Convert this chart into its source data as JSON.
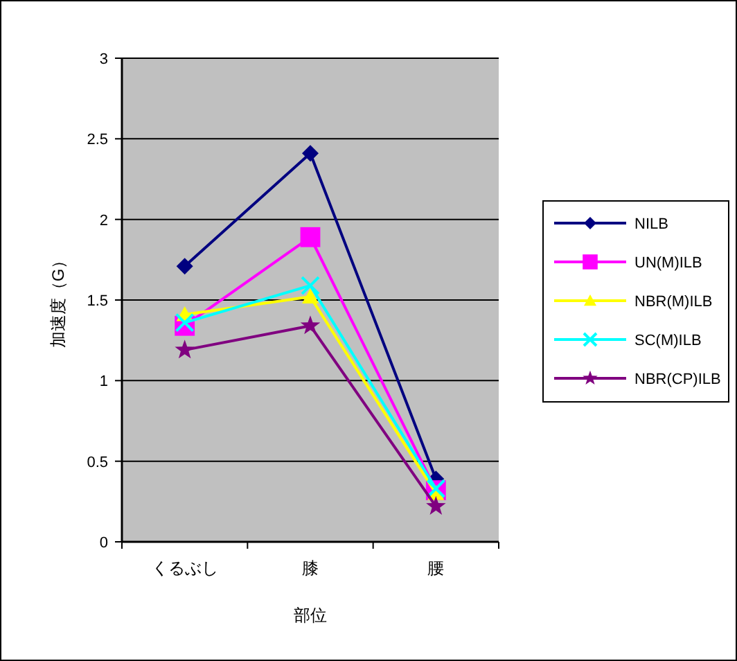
{
  "chart_data": {
    "type": "line",
    "xlabel": "部位",
    "ylabel": "加速度（G）",
    "categories": [
      "くるぶし",
      "膝",
      "腰"
    ],
    "ylim": [
      0,
      3
    ],
    "yticks": [
      0,
      0.5,
      1,
      1.5,
      2,
      2.5,
      3
    ],
    "grid": "y",
    "legend": "right",
    "series": [
      {
        "name": "NILB",
        "color": "#000080",
        "marker": "diamond",
        "values": [
          1.71,
          2.41,
          0.39
        ]
      },
      {
        "name": "UN(M)ILB",
        "color": "#ff00ff",
        "marker": "square",
        "values": [
          1.34,
          1.89,
          0.32
        ]
      },
      {
        "name": "NBR(M)ILB",
        "color": "#ffff00",
        "marker": "triangle",
        "values": [
          1.41,
          1.52,
          0.3
        ]
      },
      {
        "name": "SC(M)ILB",
        "color": "#00ffff",
        "marker": "cross",
        "values": [
          1.36,
          1.59,
          0.33
        ]
      },
      {
        "name": "NBR(CP)ILB",
        "color": "#800080",
        "marker": "star",
        "values": [
          1.19,
          1.34,
          0.22
        ]
      }
    ]
  }
}
